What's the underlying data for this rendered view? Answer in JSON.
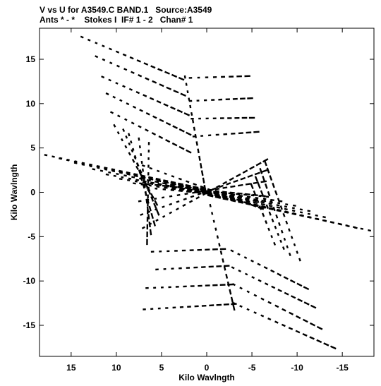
{
  "header": {
    "line1": "V vs U for A3549.C BAND.1   Source:A3549",
    "line2": "Ants * - *    Stokes I  IF# 1 - 2   Chan# 1"
  },
  "chart_data": {
    "type": "scatter",
    "title": "V vs U for A3549.C BAND.1   Source:A3549",
    "subtitle": "Ants * - *    Stokes I  IF# 1 - 2   Chan# 1",
    "xlabel": "Kilo Wavlngth",
    "ylabel": "Kilo Wavlngth",
    "xlim": [
      18.5,
      -18.5
    ],
    "ylim": [
      -18.5,
      18.5
    ],
    "xticks": [
      15,
      10,
      5,
      0,
      -5,
      -10,
      -15
    ],
    "yticks": [
      15,
      10,
      5,
      0,
      -5,
      -10,
      -15
    ],
    "grid": false,
    "legend": "none",
    "marker_color": "#000000",
    "tracks": [
      {
        "u0": 13.8,
        "v0": 17.5,
        "u1": 2.8,
        "v1": 12.8
      },
      {
        "u0": 12.2,
        "v0": 15.3,
        "u1": 2.6,
        "v1": 11.0
      },
      {
        "u0": 11.5,
        "v0": 13.0,
        "u1": 2.2,
        "v1": 8.8
      },
      {
        "u0": 11.0,
        "v0": 11.1,
        "u1": 2.0,
        "v1": 6.6
      },
      {
        "u0": 10.5,
        "v0": 9.0,
        "u1": 2.0,
        "v1": 4.6
      },
      {
        "u0": 1.8,
        "v0": 12.9,
        "u1": -4.5,
        "v1": 13.1
      },
      {
        "u0": 1.8,
        "v0": 10.3,
        "u1": -4.8,
        "v1": 10.6
      },
      {
        "u0": 1.6,
        "v0": 8.3,
        "u1": -5.0,
        "v1": 8.4
      },
      {
        "u0": 1.4,
        "v0": 6.3,
        "u1": -5.5,
        "v1": 6.8
      },
      {
        "u0": 6.0,
        "v0": -6.7,
        "u1": -1.8,
        "v1": -6.4
      },
      {
        "u0": 5.5,
        "v0": -8.7,
        "u1": -2.2,
        "v1": -8.3
      },
      {
        "u0": 6.6,
        "v0": -10.8,
        "u1": -2.6,
        "v1": -10.4
      },
      {
        "u0": 6.9,
        "v0": -13.2,
        "u1": -3.0,
        "v1": -12.6
      },
      {
        "u0": -2.8,
        "v0": -6.6,
        "u1": -11.0,
        "v1": -10.8
      },
      {
        "u0": -2.9,
        "v0": -8.5,
        "u1": -11.8,
        "v1": -12.9
      },
      {
        "u0": -3.0,
        "v0": -10.4,
        "u1": -12.5,
        "v1": -15.3
      },
      {
        "u0": -3.0,
        "v0": -12.5,
        "u1": -14.0,
        "v1": -17.5
      },
      {
        "u0": 17.8,
        "v0": 4.2,
        "u1": 0.4,
        "v1": 0.4
      },
      {
        "u0": 16.2,
        "v0": 3.8,
        "u1": 0.4,
        "v1": 0.3
      },
      {
        "u0": 14.5,
        "v0": 3.3,
        "u1": 0.3,
        "v1": 0.2
      },
      {
        "u0": 12.5,
        "v0": 2.6,
        "u1": 0.3,
        "v1": 0.1
      },
      {
        "u0": 11.0,
        "v0": 2.0,
        "u1": 0.2,
        "v1": 0.0
      },
      {
        "u0": 9.5,
        "v0": 1.5,
        "u1": 0.2,
        "v1": 0.0
      },
      {
        "u0": 8.0,
        "v0": 1.0,
        "u1": 0.2,
        "v1": -0.1
      },
      {
        "u0": 6.5,
        "v0": 0.5,
        "u1": 0.2,
        "v1": -0.1
      },
      {
        "u0": 10.2,
        "v0": 7.5,
        "u1": 5.6,
        "v1": -1.2
      },
      {
        "u0": 9.2,
        "v0": 7.0,
        "u1": 5.4,
        "v1": -2.3
      },
      {
        "u0": 8.6,
        "v0": 6.5,
        "u1": 5.8,
        "v1": -3.5
      },
      {
        "u0": 7.5,
        "v0": 6.0,
        "u1": 6.2,
        "v1": -4.5
      },
      {
        "u0": 6.4,
        "v0": 5.5,
        "u1": 6.6,
        "v1": -5.6
      },
      {
        "u0": -18.0,
        "v0": -4.3,
        "u1": -0.4,
        "v1": -0.4
      },
      {
        "u0": -16.5,
        "v0": -4.0,
        "u1": -0.4,
        "v1": -0.3
      },
      {
        "u0": -14.8,
        "v0": -3.6,
        "u1": -0.3,
        "v1": -0.2
      },
      {
        "u0": -13.0,
        "v0": -2.8,
        "u1": -0.3,
        "v1": -0.1
      },
      {
        "u0": -11.3,
        "v0": -2.1,
        "u1": -0.2,
        "v1": 0.0
      },
      {
        "u0": -9.7,
        "v0": -1.5,
        "u1": -0.2,
        "v1": 0.0
      },
      {
        "u0": -8.2,
        "v0": -1.0,
        "u1": -0.2,
        "v1": 0.1
      },
      {
        "u0": -6.7,
        "v0": -0.5,
        "u1": -0.2,
        "v1": 0.1
      },
      {
        "u0": -10.3,
        "v0": -7.6,
        "u1": -6.5,
        "v1": 3.3
      },
      {
        "u0": -9.2,
        "v0": -7.0,
        "u1": -6.0,
        "v1": 2.4
      },
      {
        "u0": -8.5,
        "v0": -6.3,
        "u1": -5.5,
        "v1": 1.5
      },
      {
        "u0": -7.5,
        "v0": -5.8,
        "u1": -5.0,
        "v1": 0.7
      },
      {
        "u0": 7.0,
        "v0": -4.0,
        "u1": -6.5,
        "v1": 3.6
      },
      {
        "u0": 7.2,
        "v0": -2.5,
        "u1": -6.4,
        "v1": 2.4
      },
      {
        "u0": 7.4,
        "v0": -1.0,
        "u1": -6.3,
        "v1": 1.2
      },
      {
        "u0": 7.3,
        "v0": 1.0,
        "u1": -6.2,
        "v1": -0.4
      },
      {
        "u0": 7.0,
        "v0": 3.0,
        "u1": -6.0,
        "v1": -1.8
      },
      {
        "u0": 2.4,
        "v0": 13.0,
        "u1": 0.2,
        "v1": 0.5
      },
      {
        "u0": -0.4,
        "v0": -1.5,
        "u1": -3.0,
        "v1": -13.0
      }
    ]
  }
}
